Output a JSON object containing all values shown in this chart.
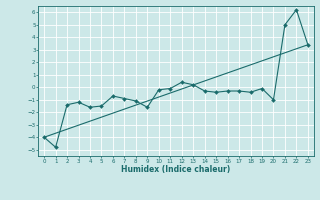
{
  "title": "",
  "xlabel": "Humidex (Indice chaleur)",
  "xlim": [
    -0.5,
    23.5
  ],
  "ylim": [
    -5.5,
    6.5
  ],
  "xticks": [
    0,
    1,
    2,
    3,
    4,
    5,
    6,
    7,
    8,
    9,
    10,
    11,
    12,
    13,
    14,
    15,
    16,
    17,
    18,
    19,
    20,
    21,
    22,
    23
  ],
  "yticks": [
    -5,
    -4,
    -3,
    -2,
    -1,
    0,
    1,
    2,
    3,
    4,
    5,
    6
  ],
  "bg_color": "#cce8e8",
  "line_color": "#1a6b6b",
  "grid_color": "#ffffff",
  "main_x": [
    0,
    1,
    2,
    3,
    4,
    5,
    6,
    7,
    8,
    9,
    10,
    11,
    12,
    13,
    14,
    15,
    16,
    17,
    18,
    19,
    20,
    21,
    22,
    23
  ],
  "main_y": [
    -4.0,
    -4.8,
    -1.4,
    -1.2,
    -1.6,
    -1.5,
    -0.7,
    -0.9,
    -1.1,
    -1.6,
    -0.2,
    -0.1,
    0.4,
    0.2,
    -0.3,
    -0.4,
    -0.3,
    -0.3,
    -0.4,
    -0.1,
    -1.0,
    5.0,
    6.2,
    3.4
  ],
  "trend_x": [
    0,
    23
  ],
  "trend_y": [
    -4.0,
    3.4
  ]
}
